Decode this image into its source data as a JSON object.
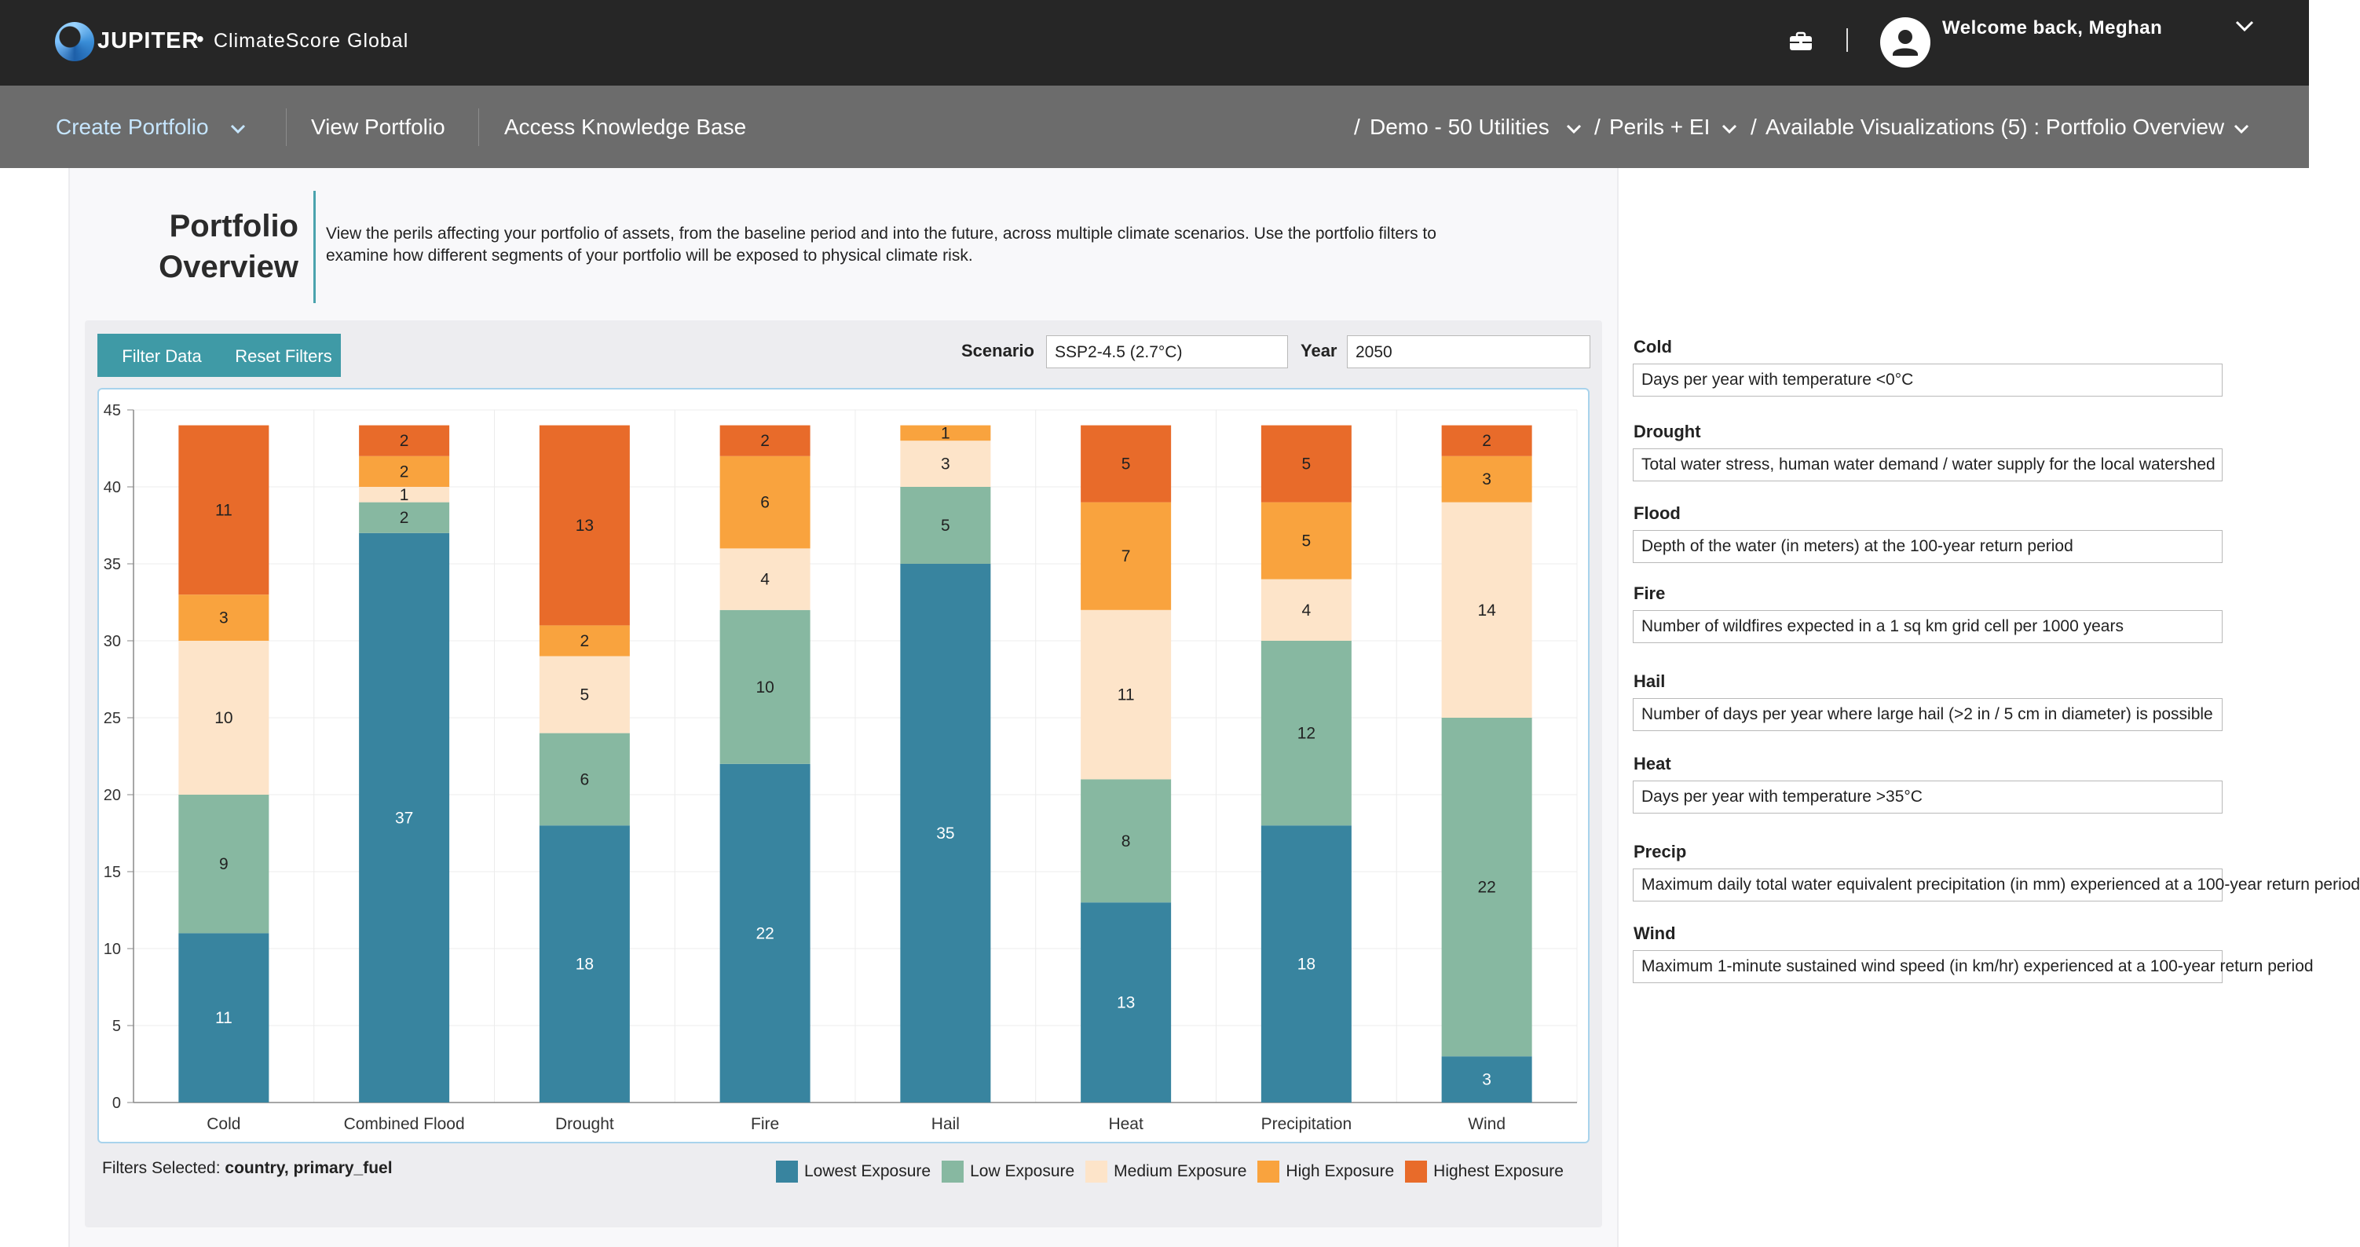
{
  "header": {
    "logo_text": "JUPITER",
    "product_name": "ClimateScore Global",
    "welcome_text": "Welcome back, Meghan"
  },
  "nav": {
    "create_portfolio": "Create Portfolio",
    "view_portfolio": "View Portfolio",
    "knowledge_base": "Access Knowledge Base",
    "crumb_portfolio": "Demo - 50 Utilities",
    "crumb_perils": "Perils + EI",
    "crumb_visualizations": "Available Visualizations (5) : Portfolio Overview",
    "crumb_sep": "/"
  },
  "page": {
    "title_line1": "Portfolio",
    "title_line2": "Overview",
    "description": "View the perils affecting your portfolio of assets, from the baseline period and into the future, across multiple climate scenarios. Use the portfolio filters to examine how different segments of your portfolio will be exposed to physical climate risk."
  },
  "controls": {
    "filter_button": "Filter Data",
    "reset_button": "Reset Filters",
    "scenario_label": "Scenario",
    "scenario_value": "SSP2-4.5 (2.7°C)",
    "year_label": "Year",
    "year_value": "2050"
  },
  "filters": {
    "label": "Filters Selected:",
    "value": "country, primary_fuel"
  },
  "chart_data": {
    "type": "bar",
    "stacked": true,
    "categories": [
      "Cold",
      "Combined Flood",
      "Drought",
      "Fire",
      "Hail",
      "Heat",
      "Precipitation",
      "Wind"
    ],
    "series": [
      {
        "name": "Lowest Exposure",
        "color": "#38849f",
        "values": [
          11,
          37,
          18,
          22,
          35,
          13,
          18,
          3
        ]
      },
      {
        "name": "Low Exposure",
        "color": "#87b8a1",
        "values": [
          9,
          2,
          6,
          10,
          5,
          8,
          12,
          22
        ]
      },
      {
        "name": "Medium Exposure",
        "color": "#fde4c9",
        "values": [
          10,
          1,
          5,
          4,
          3,
          11,
          4,
          14
        ]
      },
      {
        "name": "High Exposure",
        "color": "#f9a33e",
        "values": [
          3,
          2,
          2,
          6,
          1,
          7,
          5,
          3
        ]
      },
      {
        "name": "Highest Exposure",
        "color": "#e86b2a",
        "values": [
          11,
          2,
          13,
          2,
          0,
          5,
          5,
          2
        ]
      }
    ],
    "ylim": [
      0,
      45
    ],
    "yticks": [
      0,
      5,
      10,
      15,
      20,
      25,
      30,
      35,
      40,
      45
    ],
    "grid": true,
    "legend_position": "bottom-right"
  },
  "definitions": [
    {
      "label": "Cold",
      "text": "Days per year with temperature <0°C"
    },
    {
      "label": "Drought",
      "text": "Total water stress, human water demand / water supply for the local watershed"
    },
    {
      "label": "Flood",
      "text": "Depth of the water (in meters) at the 100-year return period"
    },
    {
      "label": "Fire",
      "text": "Number of wildfires expected in a 1 sq km grid cell per 1000 years"
    },
    {
      "label": "Hail",
      "text": "Number of days per year where large hail (>2 in / 5 cm in diameter) is possible"
    },
    {
      "label": "Heat",
      "text": "Days per year with temperature >35°C"
    },
    {
      "label": "Precip",
      "text": "Maximum daily total water equivalent precipitation (in mm) experienced at a 100-year return period"
    },
    {
      "label": "Wind",
      "text": "Maximum 1-minute sustained wind speed (in km/hr) experienced at a 100-year return period"
    }
  ]
}
